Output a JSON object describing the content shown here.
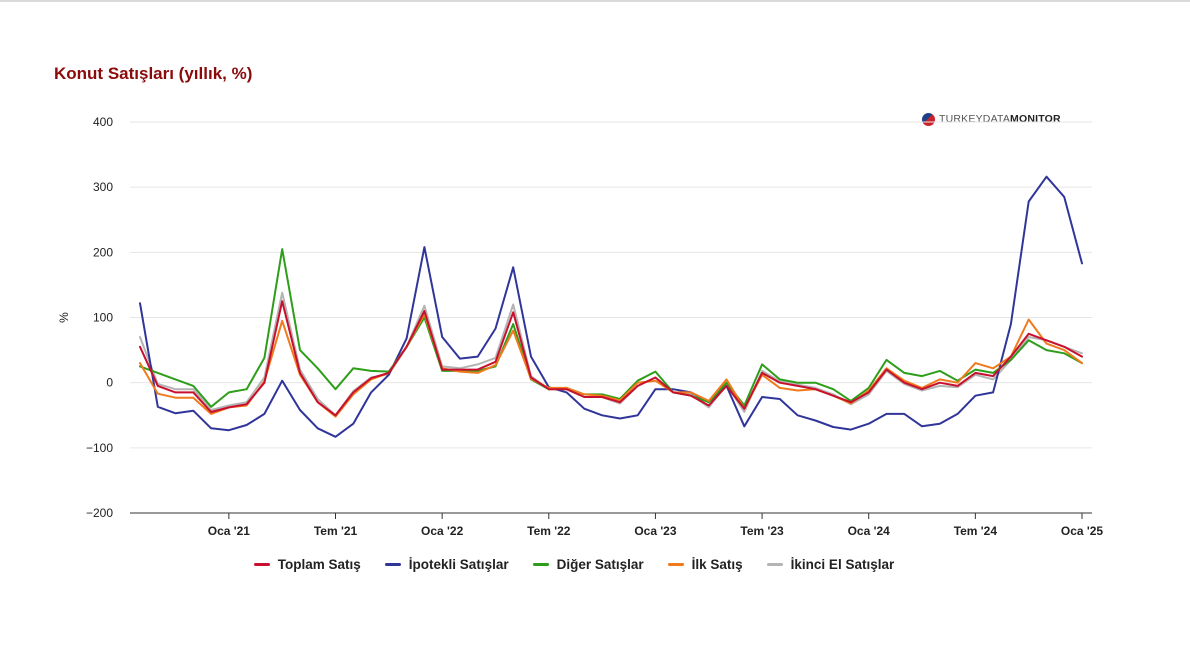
{
  "chart_data": {
    "type": "line",
    "title": "Konut Satışları (yıllık, %)",
    "ylabel": "%",
    "xlabel": "",
    "ylim": [
      -200,
      400
    ],
    "yticks": [
      "400",
      "300",
      "200",
      "100",
      "0",
      "−100",
      "−200"
    ],
    "ytick_values": [
      400,
      300,
      200,
      100,
      0,
      -100,
      -200
    ],
    "xticks": [
      {
        "label": "Oca '21",
        "x": "2021-01"
      },
      {
        "label": "Tem '21",
        "x": "2021-07"
      },
      {
        "label": "Oca '22",
        "x": "2022-01"
      },
      {
        "label": "Tem '22",
        "x": "2022-07"
      },
      {
        "label": "Oca '23",
        "x": "2023-01"
      },
      {
        "label": "Tem '23",
        "x": "2023-07"
      },
      {
        "label": "Oca '24",
        "x": "2024-01"
      },
      {
        "label": "Tem '24",
        "x": "2024-07"
      },
      {
        "label": "Oca '25",
        "x": "2025-01"
      }
    ],
    "x": [
      "2020-08",
      "2020-09",
      "2020-10",
      "2020-11",
      "2020-12",
      "2021-01",
      "2021-02",
      "2021-03",
      "2021-04",
      "2021-05",
      "2021-06",
      "2021-07",
      "2021-08",
      "2021-09",
      "2021-10",
      "2021-11",
      "2021-12",
      "2022-01",
      "2022-02",
      "2022-03",
      "2022-04",
      "2022-05",
      "2022-06",
      "2022-07",
      "2022-08",
      "2022-09",
      "2022-10",
      "2022-11",
      "2022-12",
      "2023-01",
      "2023-02",
      "2023-03",
      "2023-04",
      "2023-05",
      "2023-06",
      "2023-07",
      "2023-08",
      "2023-09",
      "2023-10",
      "2023-11",
      "2023-12",
      "2024-01",
      "2024-02",
      "2024-03",
      "2024-04",
      "2024-05",
      "2024-06",
      "2024-07",
      "2024-08",
      "2024-09",
      "2024-10",
      "2024-11",
      "2024-12",
      "2025-01"
    ],
    "grid": true,
    "legend_position": "bottom",
    "series": [
      {
        "name": "Toplam Satış",
        "color": "#c8102e",
        "values": [
          55,
          -5,
          -15,
          -15,
          -45,
          -38,
          -33,
          0,
          125,
          15,
          -30,
          -50,
          -15,
          7,
          15,
          55,
          110,
          20,
          20,
          20,
          32,
          108,
          8,
          -10,
          -10,
          -22,
          -22,
          -30,
          -5,
          8,
          -15,
          -20,
          -35,
          -5,
          -40,
          15,
          0,
          -5,
          -10,
          -20,
          -30,
          -15,
          20,
          0,
          -10,
          0,
          -5,
          15,
          10,
          40,
          75,
          65,
          55,
          40
        ]
      },
      {
        "name": "İpotekli Satışlar",
        "color": "#30359a",
        "values": [
          122,
          -37,
          -47,
          -43,
          -70,
          -73,
          -65,
          -48,
          3,
          -42,
          -70,
          -83,
          -63,
          -15,
          12,
          68,
          208,
          70,
          37,
          40,
          83,
          177,
          40,
          -7,
          -15,
          -40,
          -50,
          -55,
          -50,
          -10,
          -10,
          -15,
          -30,
          -5,
          -67,
          -22,
          -25,
          -50,
          -58,
          -68,
          -72,
          -63,
          -48,
          -48,
          -67,
          -63,
          -48,
          -20,
          -15,
          90,
          278,
          316,
          285,
          183
        ]
      },
      {
        "name": "Diğer Satışlar",
        "color": "#2e9e1a",
        "values": [
          25,
          15,
          5,
          -5,
          -37,
          -15,
          -10,
          38,
          205,
          50,
          22,
          -10,
          22,
          18,
          17,
          55,
          100,
          18,
          18,
          18,
          25,
          90,
          5,
          -10,
          -8,
          -18,
          -18,
          -25,
          3,
          17,
          -15,
          -20,
          -30,
          0,
          -35,
          28,
          5,
          0,
          0,
          -10,
          -28,
          -8,
          35,
          15,
          10,
          18,
          3,
          20,
          15,
          35,
          65,
          50,
          45,
          30
        ]
      },
      {
        "name": "İlk Satış",
        "color": "#f07a1c",
        "values": [
          30,
          -17,
          -23,
          -23,
          -48,
          -38,
          -35,
          2,
          95,
          12,
          -30,
          -52,
          -18,
          5,
          15,
          55,
          105,
          22,
          17,
          15,
          27,
          80,
          6,
          -8,
          -8,
          -18,
          -20,
          -27,
          0,
          3,
          -15,
          -15,
          -28,
          5,
          -40,
          12,
          -8,
          -12,
          -10,
          -20,
          -32,
          -12,
          22,
          3,
          -8,
          5,
          0,
          30,
          22,
          40,
          97,
          60,
          50,
          30
        ]
      },
      {
        "name": "İkinci El Satışlar",
        "color": "#b4b4b4",
        "values": [
          70,
          -2,
          -10,
          -10,
          -42,
          -35,
          -30,
          8,
          138,
          20,
          -25,
          -50,
          -13,
          8,
          13,
          55,
          118,
          25,
          22,
          28,
          38,
          120,
          10,
          -10,
          -10,
          -22,
          -22,
          -32,
          -5,
          8,
          -15,
          -18,
          -38,
          -3,
          -45,
          18,
          2,
          -3,
          -8,
          -18,
          -33,
          -18,
          18,
          -2,
          -12,
          -5,
          -7,
          12,
          5,
          35,
          70,
          65,
          55,
          45
        ]
      }
    ]
  },
  "brand": {
    "prefix": "TURKEY",
    "middle": "DATA",
    "suffix": "MONITOR"
  }
}
